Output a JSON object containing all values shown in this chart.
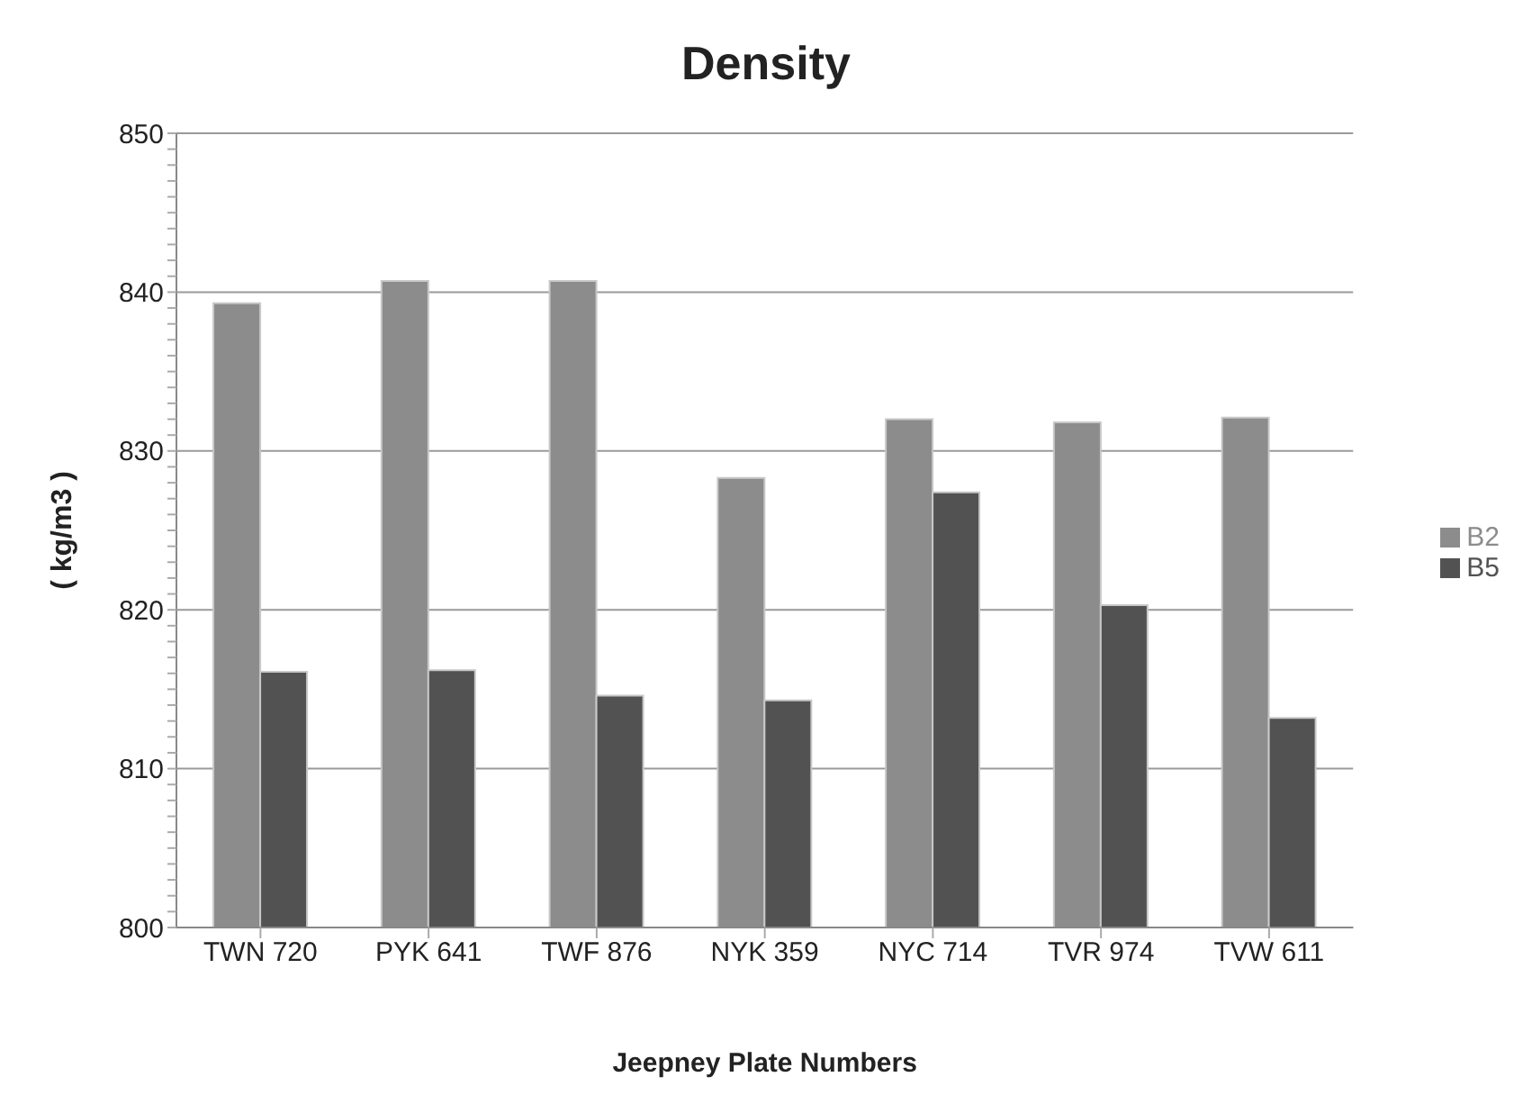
{
  "chart_data": {
    "type": "bar",
    "title": "Density",
    "xlabel": "Jeepney Plate Numbers",
    "ylabel": "( kg/m3 )",
    "categories": [
      "TWN 720",
      "PYK 641",
      "TWF 876",
      "NYK 359",
      "NYC 714",
      "TVR 974",
      "TVW 611"
    ],
    "series": [
      {
        "name": "B2",
        "color": "#8c8c8c",
        "values": [
          839.3,
          840.7,
          840.7,
          828.3,
          832.0,
          831.8,
          832.1
        ]
      },
      {
        "name": "B5",
        "color": "#525252",
        "values": [
          816.1,
          816.2,
          814.6,
          814.3,
          827.4,
          820.3,
          813.2
        ]
      }
    ],
    "ylim": [
      800,
      850
    ],
    "yticks": [
      800,
      {
        "value": 801,
        "label": null
      },
      {
        "value": 802,
        "label": null
      },
      {
        "value": 803,
        "label": null
      },
      {
        "value": 804,
        "label": null
      },
      {
        "value": 805,
        "label": null
      },
      {
        "value": 806,
        "label": null
      },
      {
        "value": 807,
        "label": null
      },
      {
        "value": 808,
        "label": null
      },
      {
        "value": 809,
        "label": null
      },
      810,
      {
        "value": 811,
        "label": null
      },
      {
        "value": 812,
        "label": null
      },
      {
        "value": 813,
        "label": null
      },
      {
        "value": 814,
        "label": null
      },
      {
        "value": 815,
        "label": null
      },
      {
        "value": 816,
        "label": null
      },
      {
        "value": 817,
        "label": null
      },
      {
        "value": 818,
        "label": null
      },
      {
        "value": 819,
        "label": null
      },
      820,
      {
        "value": 821,
        "label": null
      },
      {
        "value": 822,
        "label": null
      },
      {
        "value": 823,
        "label": null
      },
      {
        "value": 824,
        "label": null
      },
      {
        "value": 825,
        "label": null
      },
      {
        "value": 826,
        "label": null
      },
      {
        "value": 827,
        "label": null
      },
      {
        "value": 828,
        "label": null
      },
      {
        "value": 829,
        "label": null
      },
      830,
      {
        "value": 831,
        "label": null
      },
      {
        "value": 832,
        "label": null
      },
      {
        "value": 833,
        "label": null
      },
      {
        "value": 834,
        "label": null
      },
      {
        "value": 835,
        "label": null
      },
      {
        "value": 836,
        "label": null
      },
      {
        "value": 837,
        "label": null
      },
      {
        "value": 838,
        "label": null
      },
      {
        "value": 839,
        "label": null
      },
      840,
      {
        "value": 841,
        "label": null
      },
      {
        "value": 842,
        "label": null
      },
      {
        "value": 843,
        "label": null
      },
      {
        "value": 844,
        "label": null
      },
      {
        "value": 845,
        "label": null
      },
      {
        "value": 846,
        "label": null
      },
      {
        "value": 847,
        "label": null
      },
      {
        "value": 848,
        "label": null
      },
      {
        "value": 849,
        "label": null
      },
      850
    ],
    "grid": "y",
    "legend": "right"
  }
}
